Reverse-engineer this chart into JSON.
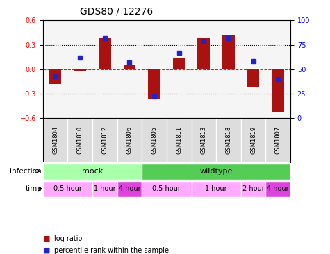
{
  "title": "GDS80 / 12276",
  "samples": [
    "GSM1804",
    "GSM1810",
    "GSM1812",
    "GSM1806",
    "GSM1805",
    "GSM1811",
    "GSM1813",
    "GSM1818",
    "GSM1819",
    "GSM1807"
  ],
  "log_ratio": [
    -0.18,
    -0.02,
    0.38,
    0.05,
    -0.37,
    0.13,
    0.38,
    0.42,
    -0.22,
    -0.52
  ],
  "percentile": [
    43,
    62,
    82,
    57,
    22,
    67,
    79,
    82,
    58,
    40
  ],
  "ylim_left": [
    -0.6,
    0.6
  ],
  "ylim_right": [
    0,
    100
  ],
  "yticks_left": [
    -0.6,
    -0.3,
    0.0,
    0.3,
    0.6
  ],
  "yticks_right": [
    0,
    25,
    50,
    75,
    100
  ],
  "bar_color": "#aa1111",
  "dot_color": "#2222cc",
  "bg_color": "#ffffff",
  "plot_bg_color": "#f5f5f5",
  "grid_color": "#000000",
  "zero_line_color": "#cc2222",
  "infection_groups": [
    {
      "label": "mock",
      "start": 0,
      "end": 4,
      "color": "#aaffaa"
    },
    {
      "label": "wildtype",
      "start": 4,
      "end": 10,
      "color": "#55cc55"
    }
  ],
  "time_groups": [
    {
      "label": "0.5 hour",
      "start": 0,
      "end": 2,
      "color": "#ffaaff"
    },
    {
      "label": "1 hour",
      "start": 2,
      "end": 3,
      "color": "#ffaaff"
    },
    {
      "label": "4 hour",
      "start": 3,
      "end": 4,
      "color": "#dd44dd"
    },
    {
      "label": "0.5 hour",
      "start": 4,
      "end": 6,
      "color": "#ffaaff"
    },
    {
      "label": "1 hour",
      "start": 6,
      "end": 8,
      "color": "#ffaaff"
    },
    {
      "label": "2 hour",
      "start": 8,
      "end": 9,
      "color": "#ffaaff"
    },
    {
      "label": "4 hour",
      "start": 9,
      "end": 10,
      "color": "#dd44dd"
    }
  ],
  "legend_items": [
    {
      "label": "log ratio",
      "color": "#aa1111",
      "marker": "s"
    },
    {
      "label": "percentile rank within the sample",
      "color": "#2222cc",
      "marker": "s"
    }
  ]
}
